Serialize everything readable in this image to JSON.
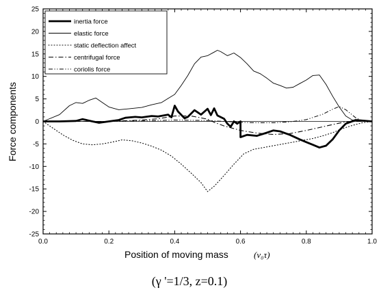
{
  "chart_data": {
    "type": "line",
    "xlabel_text": "Position of moving mass",
    "xlabel_symbol": "(v₀τ)",
    "ylabel": "Force components",
    "caption": "(γ '=1/3,  z=0.1)",
    "xlim": [
      0.0,
      1.0
    ],
    "ylim": [
      -25,
      25
    ],
    "x_ticks": [
      0.0,
      0.2,
      0.4,
      0.6,
      0.8,
      1.0
    ],
    "x_tick_labels": [
      "0.0",
      "0.2",
      "0.4",
      "0.6",
      "0.8",
      "1.0"
    ],
    "y_ticks": [
      25,
      20,
      15,
      10,
      5,
      0,
      -5,
      -10,
      -15,
      -20,
      -25
    ],
    "y_tick_labels": [
      "25",
      "20",
      "15",
      "10",
      "5",
      "0",
      "-5",
      "-10",
      "-15",
      "-20",
      "-25"
    ],
    "grid": false,
    "zero_line": true,
    "legend_position": "top-left",
    "series": [
      {
        "name": "inertia force",
        "style": "thick-solid",
        "x": [
          0.0,
          0.05,
          0.1,
          0.12,
          0.15,
          0.17,
          0.2,
          0.23,
          0.25,
          0.28,
          0.3,
          0.33,
          0.35,
          0.38,
          0.39,
          0.4,
          0.41,
          0.43,
          0.44,
          0.46,
          0.47,
          0.48,
          0.5,
          0.51,
          0.52,
          0.53,
          0.55,
          0.56,
          0.57,
          0.58,
          0.59,
          0.6,
          0.6,
          0.62,
          0.65,
          0.68,
          0.7,
          0.72,
          0.75,
          0.78,
          0.8,
          0.82,
          0.84,
          0.86,
          0.88,
          0.9,
          0.92,
          0.95,
          1.0
        ],
        "y": [
          0.0,
          0.0,
          0.1,
          0.5,
          0.0,
          -0.3,
          0.0,
          0.3,
          0.8,
          1.0,
          0.9,
          1.2,
          1.1,
          1.5,
          0.9,
          3.5,
          2.2,
          0.7,
          1.0,
          2.5,
          2.0,
          1.5,
          2.8,
          1.4,
          2.9,
          1.3,
          0.6,
          -0.5,
          -1.2,
          0.0,
          -0.5,
          0.0,
          -3.5,
          -3.0,
          -3.2,
          -2.5,
          -2.0,
          -2.2,
          -3.0,
          -4.0,
          -4.6,
          -5.2,
          -5.8,
          -5.4,
          -4.0,
          -2.0,
          -0.5,
          0.3,
          0.0
        ]
      },
      {
        "name": "elastic force",
        "style": "thin-solid",
        "x": [
          0.0,
          0.05,
          0.08,
          0.1,
          0.12,
          0.14,
          0.16,
          0.18,
          0.2,
          0.23,
          0.26,
          0.3,
          0.33,
          0.36,
          0.38,
          0.4,
          0.42,
          0.44,
          0.46,
          0.48,
          0.5,
          0.52,
          0.53,
          0.54,
          0.56,
          0.58,
          0.6,
          0.62,
          0.64,
          0.66,
          0.68,
          0.7,
          0.72,
          0.74,
          0.76,
          0.78,
          0.8,
          0.82,
          0.84,
          0.86,
          0.88,
          0.9,
          0.92,
          0.94,
          0.96,
          1.0
        ],
        "y": [
          0.0,
          1.5,
          3.5,
          4.2,
          4.0,
          4.7,
          5.2,
          4.2,
          3.2,
          2.6,
          2.8,
          3.1,
          3.7,
          4.2,
          5.1,
          6.0,
          8.0,
          10.2,
          12.8,
          14.3,
          14.6,
          15.4,
          15.8,
          15.5,
          14.6,
          15.2,
          14.2,
          12.8,
          11.2,
          10.6,
          9.6,
          8.5,
          8.0,
          7.4,
          7.6,
          8.4,
          9.2,
          10.2,
          10.3,
          8.2,
          5.6,
          3.2,
          1.2,
          0.3,
          0.0,
          0.0
        ]
      },
      {
        "name": "static deflection affect",
        "style": "dotted",
        "x": [
          0.0,
          0.03,
          0.06,
          0.09,
          0.12,
          0.15,
          0.18,
          0.21,
          0.24,
          0.27,
          0.3,
          0.33,
          0.36,
          0.39,
          0.42,
          0.45,
          0.48,
          0.5,
          0.52,
          0.55,
          0.58,
          0.61,
          0.64,
          0.67,
          0.7,
          0.73,
          0.76,
          0.79,
          0.82,
          0.85,
          0.88,
          0.91,
          0.94,
          0.97,
          1.0
        ],
        "y": [
          0.0,
          -1.5,
          -3.0,
          -4.2,
          -5.0,
          -5.2,
          -5.0,
          -4.6,
          -4.1,
          -4.3,
          -4.8,
          -5.5,
          -6.4,
          -7.7,
          -9.5,
          -11.5,
          -13.6,
          -15.6,
          -14.4,
          -12.0,
          -9.5,
          -7.2,
          -6.2,
          -5.8,
          -5.4,
          -5.0,
          -4.6,
          -4.2,
          -3.8,
          -3.2,
          -2.5,
          -1.6,
          -0.9,
          -0.3,
          0.0
        ]
      },
      {
        "name": "centrifugal force",
        "style": "dash-dot",
        "x": [
          0.0,
          0.1,
          0.2,
          0.3,
          0.35,
          0.4,
          0.45,
          0.5,
          0.52,
          0.55,
          0.6,
          0.65,
          0.7,
          0.75,
          0.8,
          0.85,
          0.88,
          0.9,
          0.92,
          0.95,
          1.0
        ],
        "y": [
          0.0,
          0.0,
          0.0,
          0.3,
          0.6,
          1.2,
          1.2,
          0.5,
          -0.2,
          -1.0,
          -2.0,
          -2.6,
          -2.9,
          -2.7,
          -2.0,
          -1.2,
          -0.7,
          -0.4,
          -0.1,
          0.0,
          0.0
        ]
      },
      {
        "name": "coriolis force",
        "style": "dash-dot-dot",
        "x": [
          0.0,
          0.1,
          0.2,
          0.3,
          0.4,
          0.5,
          0.55,
          0.6,
          0.65,
          0.7,
          0.75,
          0.8,
          0.85,
          0.88,
          0.9,
          0.92,
          0.95,
          0.97,
          1.0
        ],
        "y": [
          0.0,
          0.0,
          0.0,
          0.1,
          0.3,
          0.2,
          0.0,
          -0.2,
          -0.3,
          -0.3,
          -0.1,
          0.4,
          1.6,
          2.7,
          3.3,
          2.6,
          0.8,
          0.1,
          0.0
        ]
      }
    ]
  }
}
